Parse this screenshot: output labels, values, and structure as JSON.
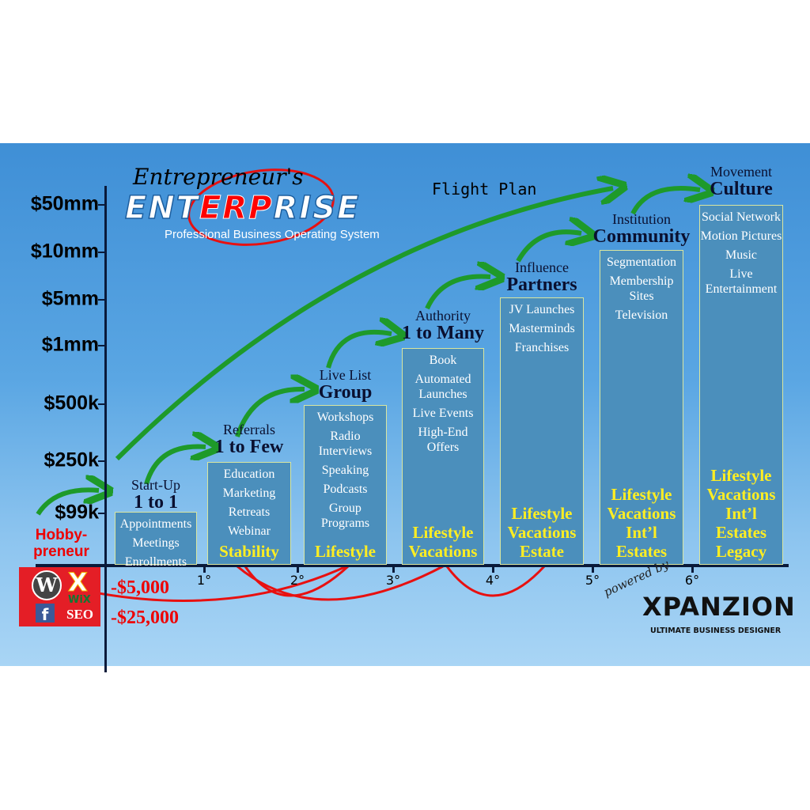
{
  "logo": {
    "script": "Entrepreneur's",
    "title_parts": [
      "ENT",
      "ERP",
      "RISE"
    ],
    "subtitle": "Professional Business Operating System"
  },
  "flight_plan": "Flight Plan",
  "y_axis": [
    "$50mm",
    "$10mm",
    "$5mm",
    "$1mm",
    "$500k",
    "$250k",
    "$99k"
  ],
  "x_axis": [
    "1°",
    "2°",
    "3°",
    "4°",
    "5°",
    "6°"
  ],
  "negatives": [
    "-$5,000",
    "-$25,000"
  ],
  "hobbypreneur": "Hobby-\npreneur",
  "badge": {
    "wix": "WiX",
    "seo": "SEO"
  },
  "stages": [
    {
      "small": "Start-Up",
      "big": "1 to 1",
      "items": [
        "Appointments",
        "Meetings",
        "Enrollments"
      ],
      "foot": ""
    },
    {
      "small": "Referrals",
      "big": "1 to Few",
      "items": [
        "Education",
        "Marketing",
        "Retreats",
        "Webinar"
      ],
      "foot": "Stability"
    },
    {
      "small": "Live List",
      "big": "Group",
      "items": [
        "Workshops",
        "Radio Interviews",
        "Speaking",
        "Podcasts",
        "Group Programs"
      ],
      "foot": "Lifestyle"
    },
    {
      "small": "Authority",
      "big": "1 to Many",
      "items": [
        "Book",
        "Automated Launches",
        "Live Events",
        "High-End Offers"
      ],
      "foot": "Lifestyle Vacations"
    },
    {
      "small": "Influence",
      "big": "Partners",
      "items": [
        "JV Launches",
        "Masterminds",
        "Franchises"
      ],
      "foot": "Lifestyle Vacations Estate"
    },
    {
      "small": "Institution",
      "big": "Community",
      "items": [
        "Segmentation",
        "Membership Sites",
        "Television"
      ],
      "foot": "Lifestyle Vacations Int’l Estates"
    },
    {
      "small": "Movement",
      "big": "Culture",
      "items": [
        "Social Network",
        "Motion Pictures",
        "Music",
        "Live Entertainment"
      ],
      "foot": "Lifestyle Vacations Int’l Estates Legacy"
    }
  ],
  "powered": {
    "by": "powered by",
    "brand": "XPANZION",
    "tagline": "ULTIMATE BUSINESS DESIGNER"
  },
  "colors": {
    "bar": "#4b8fbc",
    "foot": "#ffee22",
    "arrow": "#1e9a2a",
    "negative": "#e00000"
  }
}
